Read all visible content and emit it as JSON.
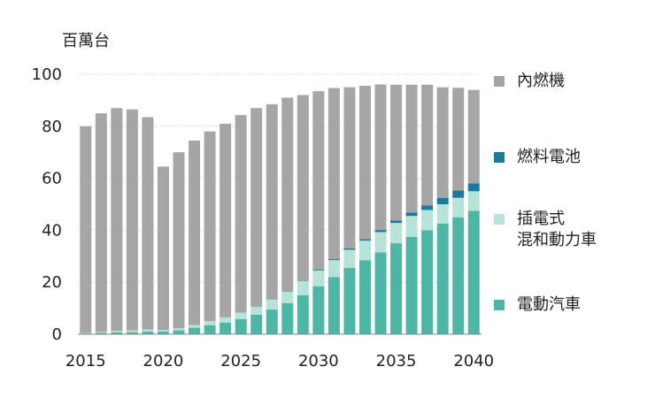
{
  "chart_data": {
    "type": "bar",
    "stacked": true,
    "ylabel": "百萬台",
    "ylim": [
      0,
      100
    ],
    "yticks": [
      0,
      20,
      40,
      60,
      80,
      100
    ],
    "x": [
      2015,
      2016,
      2017,
      2018,
      2019,
      2020,
      2021,
      2022,
      2023,
      2024,
      2025,
      2026,
      2027,
      2028,
      2029,
      2030,
      2031,
      2032,
      2033,
      2034,
      2035,
      2036,
      2037,
      2038,
      2039,
      2040
    ],
    "xticks": [
      "2015",
      "2020",
      "2025",
      "2030",
      "2035",
      "2040"
    ],
    "grid": "horizontal dotted",
    "legend_position": "right",
    "series": [
      {
        "name": "電動汽車",
        "color": "#4db6a4",
        "values": [
          0.3,
          0.5,
          0.7,
          0.8,
          1.0,
          1.0,
          1.5,
          2.5,
          3.5,
          4.5,
          5.8,
          7.5,
          9.5,
          12.0,
          15.0,
          18.5,
          22.0,
          25.5,
          28.5,
          31.5,
          35.0,
          37.5,
          40.0,
          42.5,
          45.0,
          47.5
        ]
      },
      {
        "name": "插電式\n混和動力車",
        "color": "#b5e3d8",
        "values": [
          0.2,
          0.4,
          0.6,
          0.7,
          0.8,
          0.6,
          0.8,
          1.0,
          1.5,
          2.0,
          2.5,
          3.0,
          3.8,
          4.5,
          5.5,
          6.0,
          6.5,
          7.0,
          7.5,
          7.8,
          7.8,
          8.0,
          7.8,
          7.5,
          7.5,
          7.5
        ]
      },
      {
        "name": "燃料電池",
        "color": "#1a7a9c",
        "values": [
          0,
          0,
          0,
          0,
          0,
          0,
          0,
          0,
          0,
          0,
          0,
          0,
          0,
          0.1,
          0.2,
          0.3,
          0.4,
          0.5,
          0.6,
          0.8,
          1.0,
          1.3,
          1.8,
          2.5,
          2.8,
          3.0
        ]
      },
      {
        "name": "內燃機",
        "color": "#a6a6a6",
        "values": [
          79.5,
          84.1,
          85.7,
          85.0,
          81.7,
          62.9,
          67.7,
          71.0,
          73.0,
          74.5,
          76.0,
          76.5,
          75.2,
          74.4,
          71.3,
          68.7,
          65.8,
          62.0,
          59.0,
          56.0,
          52.2,
          49.2,
          46.4,
          42.5,
          39.5,
          36.0
        ]
      }
    ]
  }
}
